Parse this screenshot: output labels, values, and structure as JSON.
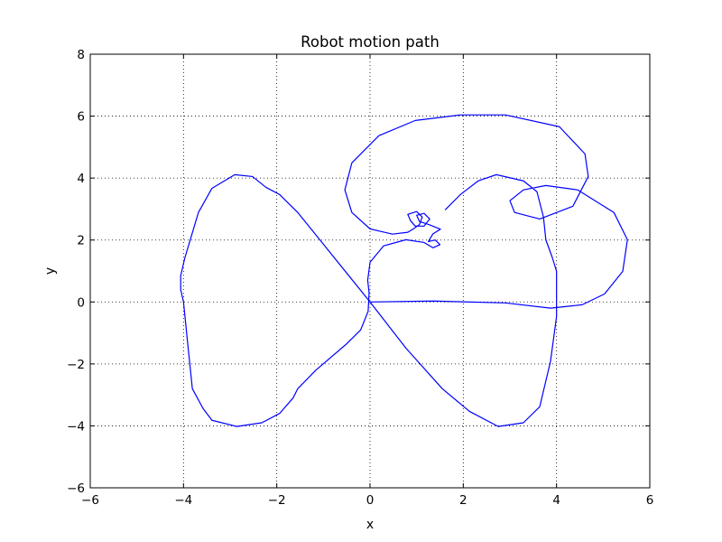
{
  "chart_data": {
    "type": "line",
    "title": "Robot motion path",
    "x_label": "x",
    "y_label": "y",
    "color": "#0000ff",
    "grid": true,
    "xlim": [
      -6,
      6
    ],
    "ylim": [
      -6,
      8
    ],
    "xticks": [
      {
        "value": -6,
        "label": "−6"
      },
      {
        "value": -4,
        "label": "−4"
      },
      {
        "value": -2,
        "label": "−2"
      },
      0,
      2,
      4,
      6
    ],
    "yticks": [
      {
        "value": -6,
        "label": "−6"
      },
      {
        "value": -4,
        "label": "−4"
      },
      {
        "value": -2,
        "label": "−2"
      },
      0,
      2,
      4,
      6,
      8
    ],
    "x": [
      1.61,
      1.94,
      2.32,
      2.71,
      3.29,
      3.58,
      3.72,
      3.77,
      3.91,
      4.0,
      4.0,
      3.87,
      3.64,
      3.29,
      2.75,
      2.13,
      1.55,
      0.77,
      0,
      -0.97,
      -1.55,
      -1.94,
      -2.23,
      -2.52,
      -2.9,
      -3.39,
      -3.68,
      -3.97,
      -4.06,
      -4.06,
      -4.0,
      -3.91,
      -3.81,
      -3.58,
      -3.39,
      -2.86,
      -2.32,
      -1.94,
      -1.65,
      -1.55,
      -1.16,
      -0.5,
      -0.2,
      -0.04,
      -0.02,
      -0.05,
      0,
      0.29,
      0.77,
      1.16,
      1.35,
      1.5,
      1.4,
      1.25,
      1.35,
      1.51,
      1.26,
      1.06,
      1.0,
      1.16,
      1.28,
      1.16,
      0.97,
      0.87,
      0.81,
      1.0,
      1.12,
      1.06,
      0.93,
      0.81,
      0.48,
      0,
      -0.39,
      -0.54,
      -0.39,
      0.19,
      0.97,
      1.94,
      2.9,
      4.06,
      4.61,
      4.68,
      4.35,
      3.64,
      3.1,
      3.0,
      3.29,
      3.77,
      4.45,
      5.23,
      5.52,
      5.42,
      5.03,
      4.55,
      3.87,
      2.9,
      1.35,
      0
    ],
    "values": [
      2.97,
      3.47,
      3.91,
      4.11,
      3.91,
      3.56,
      2.74,
      2.01,
      1.43,
      0.99,
      -0.47,
      -1.92,
      -3.38,
      -3.9,
      -4.02,
      -3.53,
      -2.8,
      -1.49,
      0,
      1.81,
      2.89,
      3.47,
      3.7,
      4.05,
      4.11,
      3.67,
      2.89,
      1.43,
      0.85,
      0.4,
      0,
      -1.34,
      -2.8,
      -3.44,
      -3.82,
      -4.02,
      -3.9,
      -3.6,
      -3.1,
      -2.8,
      -2.2,
      -1.35,
      -0.9,
      -0.3,
      0.3,
      0.7,
      1.28,
      1.81,
      2.01,
      1.92,
      1.75,
      1.85,
      2.0,
      1.95,
      2.2,
      2.35,
      2.5,
      2.6,
      2.8,
      2.86,
      2.68,
      2.45,
      2.45,
      2.62,
      2.83,
      2.92,
      2.74,
      2.5,
      2.36,
      2.25,
      2.19,
      2.36,
      2.89,
      3.62,
      4.49,
      5.37,
      5.86,
      6.04,
      6.04,
      5.66,
      4.78,
      4.05,
      3.09,
      2.68,
      2.89,
      3.27,
      3.62,
      3.76,
      3.62,
      2.89,
      2.01,
      0.99,
      0.26,
      -0.09,
      -0.2,
      -0.03,
      0.03,
      0
    ]
  }
}
